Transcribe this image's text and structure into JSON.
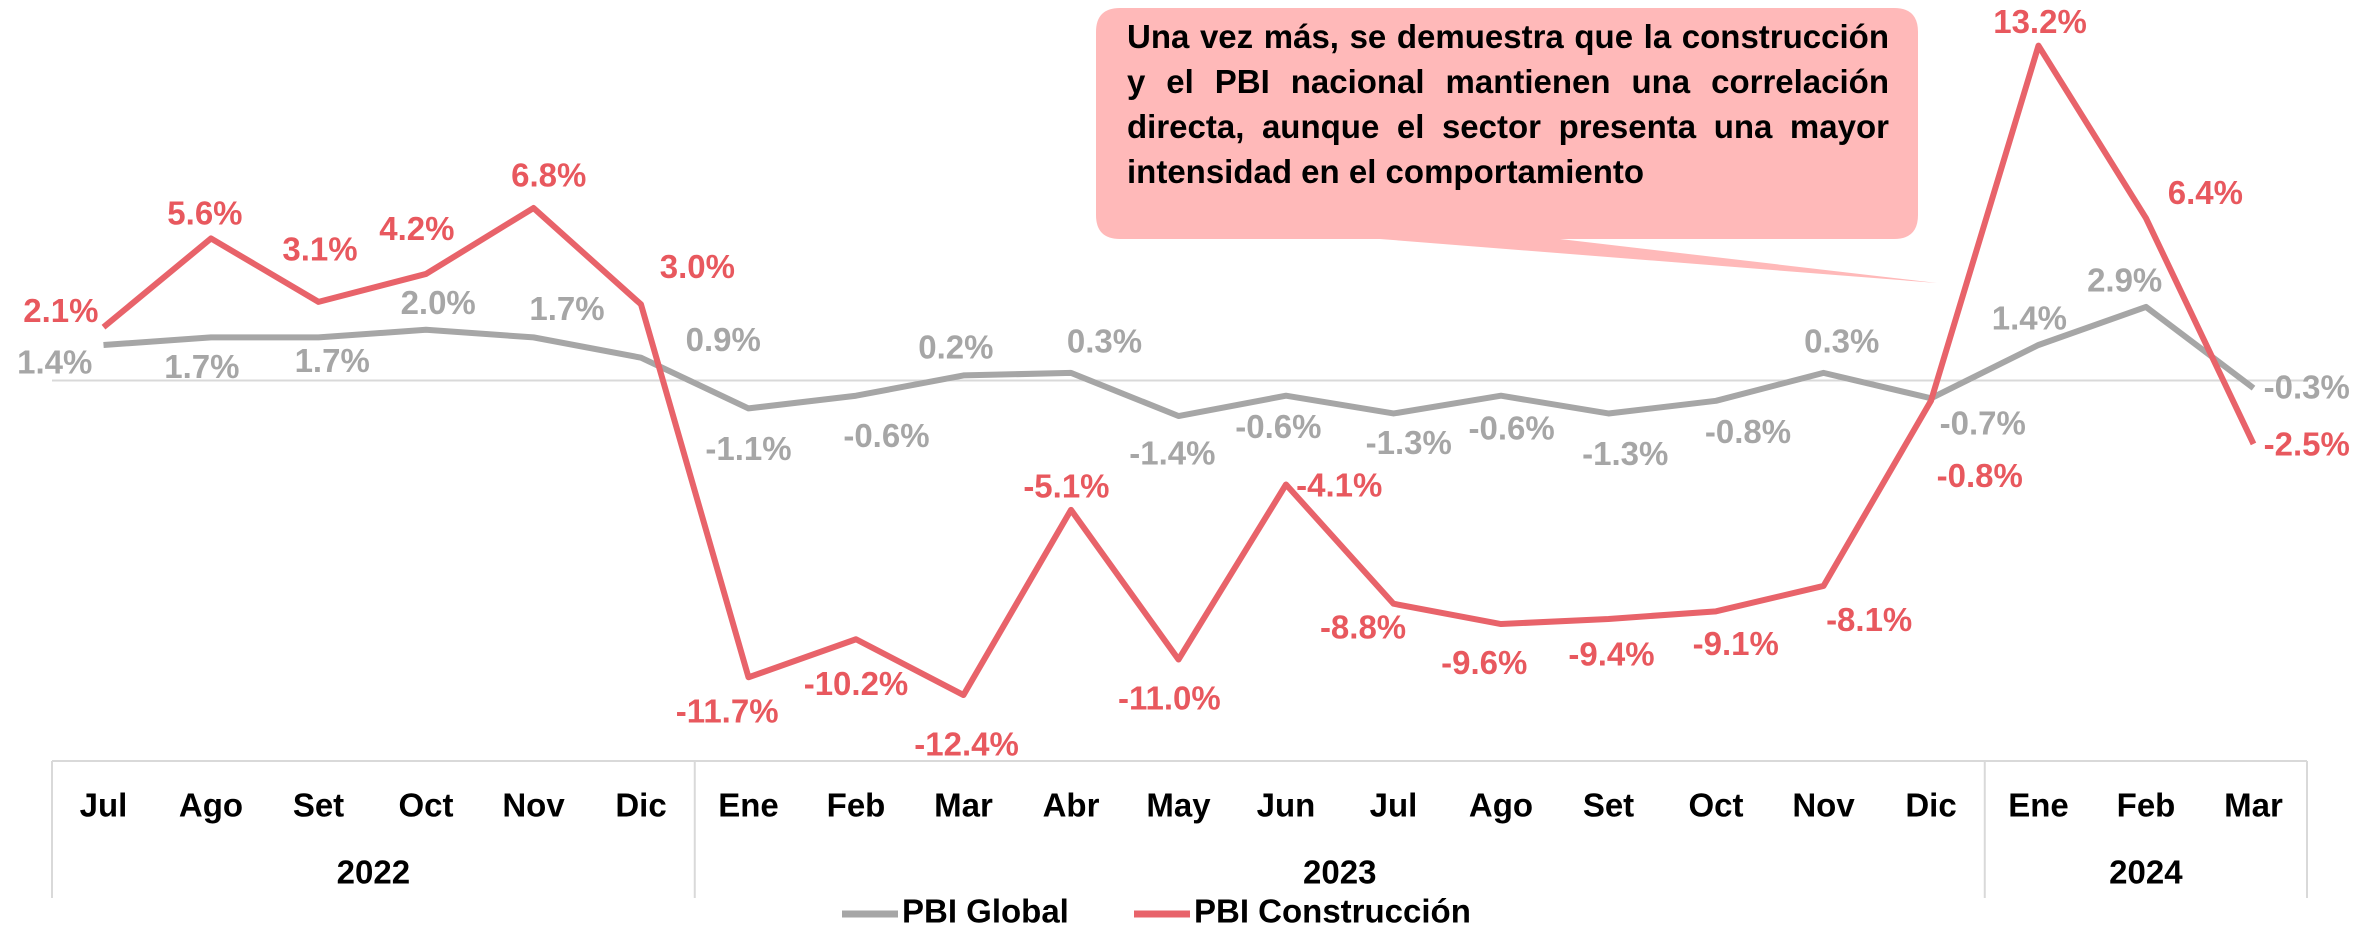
{
  "chart_data": {
    "type": "line",
    "annotation": "Una vez más, se demuestra que la construcción y el PBI nacional mantienen una correlación directa, aunque el sector presenta una mayor intensidad en el comportamiento",
    "categories": [
      "Jul",
      "Ago",
      "Set",
      "Oct",
      "Nov",
      "Dic",
      "Ene",
      "Feb",
      "Mar",
      "Abr",
      "May",
      "Jun",
      "Jul",
      "Ago",
      "Set",
      "Oct",
      "Nov",
      "Dic",
      "Ene",
      "Feb",
      "Mar"
    ],
    "year_groups": [
      {
        "label": "2022",
        "months": 6
      },
      {
        "label": "2023",
        "months": 12
      },
      {
        "label": "2024",
        "months": 3
      }
    ],
    "ylim": [
      -15,
      15
    ],
    "series": [
      {
        "name": "PBI Global",
        "color": "#a6a6a6",
        "values": [
          1.4,
          1.7,
          1.7,
          2.0,
          1.7,
          0.9,
          -1.1,
          -0.6,
          0.2,
          0.3,
          -1.4,
          -0.6,
          -1.3,
          -0.6,
          -1.3,
          -0.8,
          0.3,
          -0.7,
          1.4,
          2.9,
          -0.3
        ],
        "value_labels": [
          "1.4%",
          "1.7%",
          "1.7%",
          "2.0%",
          "1.7%",
          "0.9%",
          "-1.1%",
          "-0.6%",
          "0.2%",
          "0.3%",
          "-1.4%",
          "-0.6%",
          "-1.3%",
          "-0.6%",
          "-1.3%",
          "-0.8%",
          "0.3%",
          "-0.7%",
          "1.4%",
          "2.9%",
          "-0.3%"
        ]
      },
      {
        "name": "PBI Construcción",
        "color": "#e8636a",
        "values": [
          2.1,
          5.6,
          3.1,
          4.2,
          6.8,
          3.0,
          -11.7,
          -10.2,
          -12.4,
          -5.1,
          -11.0,
          -4.1,
          -8.8,
          -9.6,
          -9.4,
          -9.1,
          -8.1,
          -0.8,
          13.2,
          6.4,
          -2.5
        ],
        "value_labels": [
          "2.1%",
          "5.6%",
          "3.1%",
          "4.2%",
          "6.8%",
          "3.0%",
          "-11.7%",
          "-10.2%",
          "-12.4%",
          "-5.1%",
          "-11.0%",
          "-4.1%",
          "-8.8%",
          "-9.6%",
          "-9.4%",
          "-9.1%",
          "-8.1%",
          "-0.8%",
          "13.2%",
          "6.4%",
          "-2.5%"
        ]
      }
    ]
  }
}
